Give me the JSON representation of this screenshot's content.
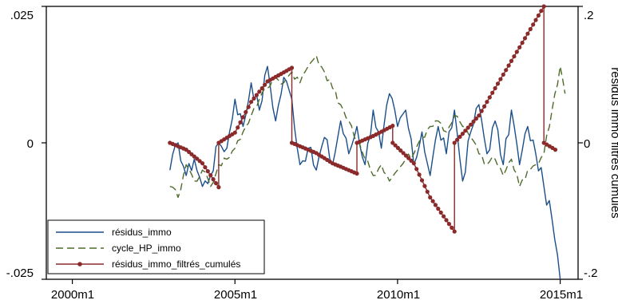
{
  "chart_data": {
    "type": "line",
    "xlabel": "",
    "ylabel_left": "",
    "ylabel_right": "résidus immo filtrés cumulés",
    "x_start": "2003m1",
    "x_end": "2015m2",
    "xlim": [
      1999.2,
      2015.55
    ],
    "xticks": [
      {
        "label": "2000m1",
        "value": 2000.0
      },
      {
        "label": "2005m1",
        "value": 2005.0
      },
      {
        "label": "2010m1",
        "value": 2010.0
      },
      {
        "label": "2015m1",
        "value": 2015.0
      }
    ],
    "ylim_left": [
      -0.025,
      0.025
    ],
    "yticks_left": [
      {
        "label": ".025",
        "value": 0.025
      },
      {
        "label": "0",
        "value": 0
      },
      {
        "label": "-.025",
        "value": -0.025
      }
    ],
    "ylim_right": [
      -0.2,
      0.2
    ],
    "yticks_right": [
      {
        "label": ".2",
        "value": 0.2
      },
      {
        "label": "0",
        "value": 0
      },
      {
        "label": "-.2",
        "value": -0.2
      }
    ],
    "grid": false,
    "legend": "bottom-left",
    "series": [
      {
        "name": "résidus_immo",
        "color": "#1a4f8a",
        "style": "solid",
        "axis": "left",
        "points": [
          [
            2003.0,
            -0.005
          ],
          [
            2003.25,
            0.0
          ],
          [
            2003.5,
            -0.006
          ],
          [
            2003.75,
            -0.003
          ],
          [
            2004.0,
            -0.008
          ],
          [
            2004.25,
            -0.006
          ],
          [
            2004.5,
            0.0
          ],
          [
            2004.75,
            -0.001
          ],
          [
            2005.0,
            0.008
          ],
          [
            2005.25,
            0.003
          ],
          [
            2005.5,
            0.011
          ],
          [
            2005.75,
            0.006
          ],
          [
            2006.0,
            0.014
          ],
          [
            2006.25,
            0.004
          ],
          [
            2006.5,
            0.012
          ],
          [
            2006.75,
            0.008
          ],
          [
            2007.0,
            -0.004
          ],
          [
            2007.25,
            -0.001
          ],
          [
            2007.5,
            -0.005
          ],
          [
            2007.75,
            0.001
          ],
          [
            2008.0,
            -0.004
          ],
          [
            2008.25,
            0.004
          ],
          [
            2008.5,
            -0.002
          ],
          [
            2008.75,
            0.003
          ],
          [
            2009.0,
            -0.004
          ],
          [
            2009.25,
            0.006
          ],
          [
            2009.5,
            -0.001
          ],
          [
            2009.75,
            0.009
          ],
          [
            2010.0,
            0.003
          ],
          [
            2010.25,
            0.006
          ],
          [
            2010.5,
            -0.004
          ],
          [
            2010.75,
            0.002
          ],
          [
            2011.0,
            -0.006
          ],
          [
            2011.25,
            0.003
          ],
          [
            2011.5,
            -0.002
          ],
          [
            2011.75,
            0.006
          ],
          [
            2012.0,
            -0.007
          ],
          [
            2012.25,
            0.002
          ],
          [
            2012.5,
            0.007
          ],
          [
            2012.75,
            -0.002
          ],
          [
            2013.0,
            0.004
          ],
          [
            2013.25,
            -0.004
          ],
          [
            2013.5,
            0.006
          ],
          [
            2013.75,
            -0.004
          ],
          [
            2014.0,
            0.003
          ],
          [
            2014.25,
            -0.002
          ],
          [
            2014.5,
            -0.008
          ],
          [
            2014.75,
            -0.014
          ],
          [
            2015.0,
            -0.025
          ]
        ]
      },
      {
        "name": "cycle_HP_immo",
        "color": "#4f6b2a",
        "style": "dashed",
        "axis": "left",
        "points": [
          [
            2003.0,
            -0.008
          ],
          [
            2003.25,
            -0.01
          ],
          [
            2003.5,
            -0.004
          ],
          [
            2003.75,
            -0.007
          ],
          [
            2004.0,
            -0.005
          ],
          [
            2004.25,
            -0.008
          ],
          [
            2004.5,
            -0.004
          ],
          [
            2004.75,
            -0.003
          ],
          [
            2005.0,
            -0.001
          ],
          [
            2005.25,
            0.002
          ],
          [
            2005.5,
            0.005
          ],
          [
            2005.75,
            0.008
          ],
          [
            2006.0,
            0.01
          ],
          [
            2006.25,
            0.012
          ],
          [
            2006.5,
            0.011
          ],
          [
            2006.75,
            0.013
          ],
          [
            2007.0,
            0.011
          ],
          [
            2007.25,
            0.014
          ],
          [
            2007.5,
            0.016
          ],
          [
            2007.75,
            0.013
          ],
          [
            2008.0,
            0.01
          ],
          [
            2008.25,
            0.007
          ],
          [
            2008.5,
            0.004
          ],
          [
            2008.75,
            0.0
          ],
          [
            2009.0,
            -0.003
          ],
          [
            2009.25,
            -0.006
          ],
          [
            2009.5,
            -0.004
          ],
          [
            2009.75,
            -0.007
          ],
          [
            2010.0,
            -0.005
          ],
          [
            2010.25,
            -0.003
          ],
          [
            2010.5,
            -0.002
          ],
          [
            2010.75,
            0.001
          ],
          [
            2011.0,
            0.003
          ],
          [
            2011.25,
            0.004
          ],
          [
            2011.5,
            0.002
          ],
          [
            2011.75,
            0.005
          ],
          [
            2012.0,
            0.003
          ],
          [
            2012.25,
            0.001
          ],
          [
            2012.5,
            -0.002
          ],
          [
            2012.75,
            -0.004
          ],
          [
            2013.0,
            -0.003
          ],
          [
            2013.25,
            -0.006
          ],
          [
            2013.5,
            -0.003
          ],
          [
            2013.75,
            -0.008
          ],
          [
            2014.0,
            -0.005
          ],
          [
            2014.25,
            -0.004
          ],
          [
            2014.5,
            -0.002
          ],
          [
            2014.75,
            0.006
          ],
          [
            2015.0,
            0.014
          ],
          [
            2015.15,
            0.009
          ]
        ]
      },
      {
        "name": "résidus_immo_filtrés_cumulés",
        "color": "#8b2a2a",
        "style": "solid-markers",
        "axis": "right",
        "points": [
          [
            2003.0,
            0.0
          ],
          [
            2003.5,
            -0.01
          ],
          [
            2004.0,
            -0.03
          ],
          [
            2004.5,
            -0.065
          ],
          [
            2004.5,
            0.0
          ],
          [
            2005.0,
            0.015
          ],
          [
            2005.5,
            0.06
          ],
          [
            2006.0,
            0.09
          ],
          [
            2006.75,
            0.11
          ],
          [
            2006.75,
            0.0
          ],
          [
            2007.5,
            -0.015
          ],
          [
            2008.0,
            -0.03
          ],
          [
            2008.75,
            -0.045
          ],
          [
            2008.75,
            0.0
          ],
          [
            2009.25,
            0.01
          ],
          [
            2009.85,
            0.025
          ],
          [
            2009.85,
            0.0
          ],
          [
            2010.5,
            -0.03
          ],
          [
            2011.0,
            -0.08
          ],
          [
            2011.75,
            -0.13
          ],
          [
            2011.75,
            0.0
          ],
          [
            2012.5,
            0.04
          ],
          [
            2013.0,
            0.08
          ],
          [
            2013.5,
            0.12
          ],
          [
            2014.0,
            0.16
          ],
          [
            2014.5,
            0.2
          ],
          [
            2014.5,
            0.0
          ],
          [
            2014.85,
            -0.01
          ]
        ]
      }
    ]
  }
}
